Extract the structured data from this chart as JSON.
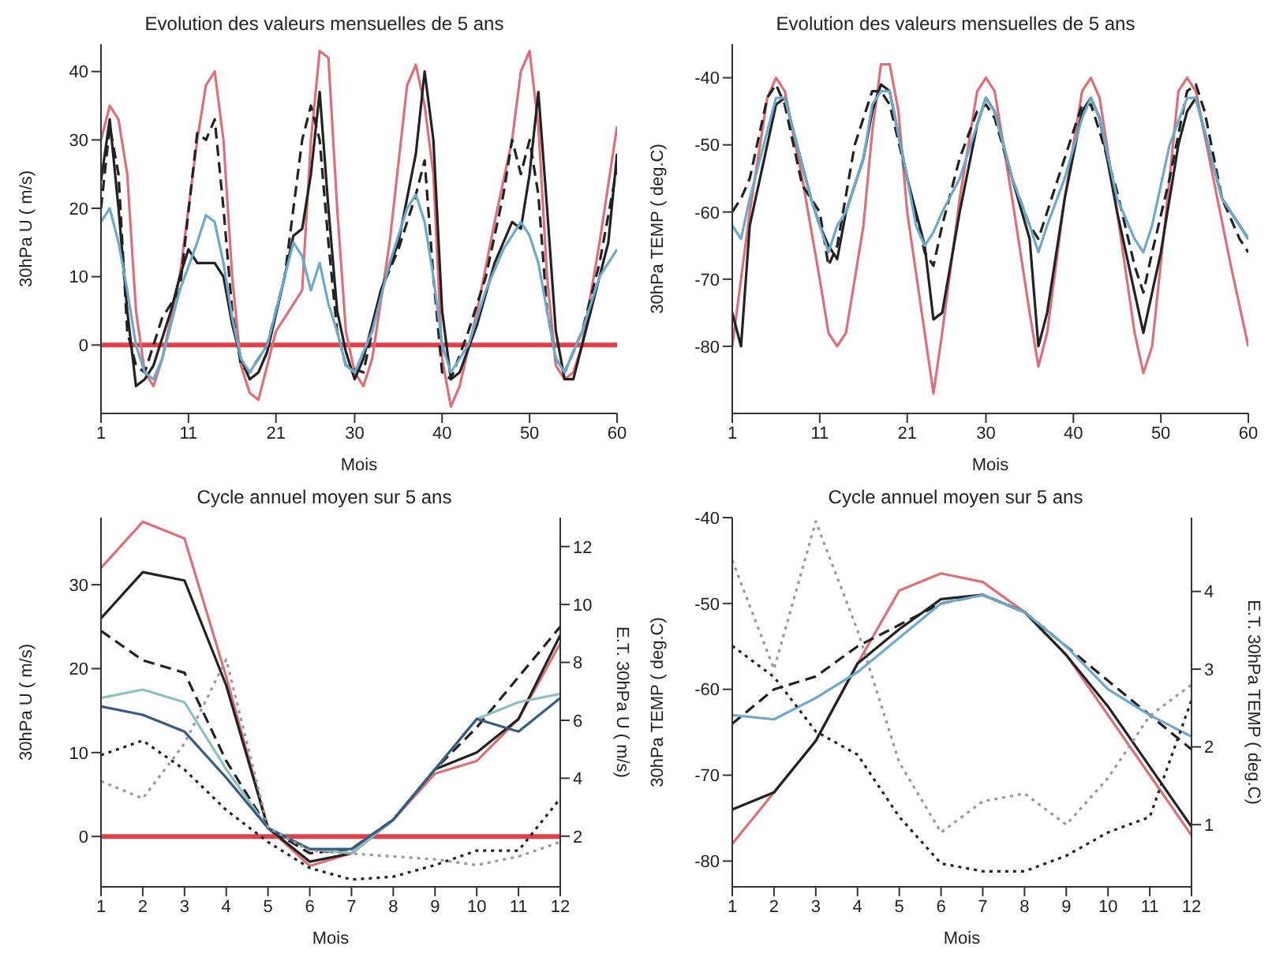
{
  "chart_data": [
    {
      "type": "line",
      "title": "Evolution des valeurs mensuelles de 5 ans",
      "xlabel": "Mois",
      "ylabel": "30hPa U ( m/s)",
      "xlim": [
        1,
        60
      ],
      "xticks": [
        1,
        11,
        21,
        30,
        40,
        50,
        60
      ],
      "ylim": [
        -10,
        44
      ],
      "yticks": [
        0,
        10,
        20,
        30,
        40
      ],
      "ref_lines": [
        {
          "axis": "y",
          "value": 0,
          "color": "#e0404a"
        }
      ],
      "series": [
        {
          "color": "#d9707a",
          "line_style": "solid",
          "x": [
            1,
            2,
            3,
            4,
            5,
            6,
            7,
            8,
            10,
            12,
            13,
            14,
            15,
            16,
            17,
            18,
            19,
            20,
            21,
            22,
            24,
            25,
            26,
            27,
            28,
            29,
            30,
            31,
            32,
            34,
            36,
            37,
            38,
            39,
            40,
            41,
            42,
            44,
            46,
            48,
            49,
            50,
            51,
            52,
            53,
            54,
            55,
            56,
            58,
            60
          ],
          "values": [
            30,
            35,
            33,
            25,
            5,
            -4,
            -6,
            -2,
            10,
            30,
            38,
            40,
            30,
            10,
            -3,
            -7,
            -8,
            -3,
            2,
            4,
            8,
            30,
            43,
            42,
            20,
            2,
            -4,
            -6,
            -2,
            15,
            38,
            41,
            35,
            25,
            -2,
            -9,
            -6,
            5,
            18,
            30,
            40,
            43,
            32,
            10,
            -3,
            -5,
            -4,
            0,
            15,
            32
          ]
        },
        {
          "color": "#222222",
          "line_style": "solid",
          "x": [
            1,
            2,
            3,
            4,
            5,
            6,
            7,
            9,
            10,
            11,
            12,
            14,
            15,
            16,
            17,
            18,
            19,
            20,
            22,
            23,
            24,
            25,
            26,
            27,
            28,
            29,
            30,
            31,
            33,
            35,
            37,
            38,
            39,
            40,
            41,
            42,
            44,
            46,
            48,
            49,
            50,
            51,
            52,
            53,
            54,
            55,
            57,
            59,
            60
          ],
          "values": [
            24,
            33,
            20,
            5,
            -6,
            -5,
            -3,
            5,
            10,
            14,
            12,
            12,
            10,
            3,
            -2,
            -5,
            -4,
            -1,
            10,
            16,
            17,
            25,
            37,
            20,
            5,
            -1,
            -5,
            -2,
            8,
            15,
            28,
            40,
            30,
            5,
            -5,
            -4,
            3,
            12,
            18,
            17,
            25,
            37,
            20,
            2,
            -5,
            -5,
            5,
            15,
            28
          ]
        },
        {
          "color": "#222222",
          "line_style": "dashed",
          "x": [
            1,
            2,
            3,
            4,
            5,
            6,
            8,
            10,
            12,
            13,
            14,
            15,
            16,
            17,
            18,
            20,
            22,
            24,
            25,
            26,
            27,
            28,
            29,
            31,
            33,
            35,
            37,
            38,
            39,
            40,
            41,
            43,
            45,
            47,
            48,
            49,
            50,
            51,
            52,
            53,
            54,
            56,
            58,
            60
          ],
          "values": [
            20,
            32,
            25,
            2,
            -3,
            -4,
            4,
            8,
            31,
            30,
            33,
            20,
            5,
            -3,
            -4,
            0,
            10,
            30,
            35,
            30,
            15,
            2,
            -3,
            -4,
            8,
            14,
            22,
            27,
            10,
            -4,
            -5,
            2,
            10,
            22,
            30,
            25,
            30,
            22,
            5,
            -2,
            -4,
            2,
            12,
            26
          ]
        },
        {
          "color": "#6fa8c8",
          "line_style": "solid",
          "x": [
            1,
            2,
            3,
            4,
            5,
            6,
            7,
            8,
            10,
            12,
            13,
            14,
            15,
            16,
            17,
            18,
            20,
            22,
            23,
            24,
            25,
            26,
            27,
            28,
            29,
            30,
            32,
            34,
            36,
            37,
            38,
            39,
            40,
            41,
            43,
            45,
            47,
            49,
            50,
            51,
            52,
            53,
            54,
            56,
            58,
            60
          ],
          "values": [
            18,
            20,
            15,
            8,
            0,
            -4,
            -5,
            -2,
            8,
            15,
            19,
            18,
            12,
            4,
            -2,
            -4,
            0,
            10,
            15,
            13,
            8,
            12,
            6,
            2,
            -3,
            -4,
            2,
            12,
            20,
            22,
            18,
            10,
            0,
            -4,
            0,
            8,
            14,
            18,
            16,
            12,
            5,
            -2,
            -4,
            2,
            10,
            14
          ]
        }
      ]
    },
    {
      "type": "line",
      "title": "Evolution des valeurs mensuelles de 5 ans",
      "xlabel": "Mois",
      "ylabel": "30hPa TEMP ( deg.C)",
      "xlim": [
        1,
        60
      ],
      "xticks": [
        1,
        11,
        21,
        30,
        40,
        50,
        60
      ],
      "ylim": [
        -90,
        -35
      ],
      "yticks": [
        -40,
        -50,
        -60,
        -70,
        -80
      ],
      "series": [
        {
          "color": "#d9707a",
          "line_style": "solid",
          "x": [
            1,
            3,
            5,
            6,
            7,
            9,
            11,
            12,
            13,
            14,
            16,
            17,
            18,
            19,
            20,
            21,
            23,
            24,
            25,
            27,
            29,
            30,
            31,
            33,
            35,
            36,
            37,
            39,
            41,
            42,
            43,
            45,
            47,
            48,
            49,
            51,
            52,
            53,
            54,
            56,
            58,
            60
          ],
          "values": [
            -80,
            -60,
            -43,
            -40,
            -42,
            -55,
            -70,
            -78,
            -80,
            -78,
            -62,
            -48,
            -38,
            -38,
            -45,
            -60,
            -78,
            -87,
            -78,
            -58,
            -42,
            -40,
            -42,
            -58,
            -75,
            -83,
            -78,
            -58,
            -42,
            -40,
            -43,
            -60,
            -78,
            -84,
            -80,
            -55,
            -42,
            -40,
            -42,
            -55,
            -68,
            -80
          ]
        },
        {
          "color": "#222222",
          "line_style": "solid",
          "x": [
            1,
            2,
            3,
            5,
            6,
            7,
            8,
            10,
            11,
            12,
            13,
            14,
            16,
            17,
            18,
            19,
            21,
            23,
            24,
            25,
            27,
            29,
            30,
            31,
            33,
            35,
            36,
            37,
            39,
            41,
            42,
            43,
            45,
            47,
            48,
            49,
            50,
            51,
            52,
            53,
            54,
            55,
            57,
            59,
            60
          ],
          "values": [
            -75,
            -80,
            -62,
            -50,
            -44,
            -43,
            -48,
            -58,
            -62,
            -65,
            -67,
            -60,
            -52,
            -45,
            -41,
            -42,
            -55,
            -65,
            -76,
            -75,
            -60,
            -47,
            -43,
            -45,
            -55,
            -64,
            -80,
            -75,
            -58,
            -45,
            -43,
            -46,
            -60,
            -72,
            -78,
            -72,
            -66,
            -58,
            -50,
            -45,
            -43,
            -48,
            -58,
            -62,
            -64
          ]
        },
        {
          "color": "#222222",
          "line_style": "dashed",
          "x": [
            1,
            2,
            3,
            5,
            6,
            7,
            9,
            11,
            12,
            13,
            15,
            17,
            18,
            19,
            21,
            23,
            24,
            25,
            27,
            29,
            30,
            31,
            33,
            35,
            36,
            37,
            39,
            41,
            42,
            43,
            45,
            47,
            48,
            49,
            51,
            53,
            54,
            55,
            57,
            59,
            60
          ],
          "values": [
            -60,
            -58,
            -55,
            -43,
            -41,
            -44,
            -56,
            -60,
            -68,
            -65,
            -50,
            -42,
            -42,
            -44,
            -55,
            -66,
            -68,
            -62,
            -52,
            -45,
            -44,
            -46,
            -55,
            -62,
            -64,
            -60,
            -52,
            -44,
            -44,
            -48,
            -57,
            -68,
            -72,
            -66,
            -55,
            -42,
            -41,
            -45,
            -58,
            -64,
            -66
          ]
        },
        {
          "color": "#6fa8c8",
          "line_style": "solid",
          "x": [
            1,
            2,
            3,
            5,
            6,
            7,
            8,
            10,
            11,
            12,
            13,
            14,
            16,
            17,
            18,
            19,
            21,
            22,
            23,
            24,
            25,
            27,
            29,
            30,
            31,
            33,
            35,
            36,
            37,
            39,
            41,
            42,
            43,
            45,
            47,
            48,
            49,
            51,
            53,
            54,
            55,
            57,
            59,
            60
          ],
          "values": [
            -62,
            -64,
            -58,
            -48,
            -43,
            -43,
            -48,
            -58,
            -62,
            -66,
            -62,
            -60,
            -52,
            -44,
            -42,
            -42,
            -55,
            -62,
            -65,
            -63,
            -60,
            -55,
            -47,
            -43,
            -45,
            -55,
            -62,
            -66,
            -62,
            -55,
            -46,
            -43,
            -46,
            -58,
            -64,
            -66,
            -62,
            -50,
            -43,
            -43,
            -48,
            -58,
            -62,
            -64
          ]
        }
      ]
    },
    {
      "type": "line",
      "title": "Cycle annuel moyen sur 5 ans",
      "xlabel": "Mois",
      "ylabel": "30hPa U ( m/s)",
      "y2label": "E.T. 30hPa U ( m/s)",
      "xlim": [
        1,
        12
      ],
      "xticks": [
        1,
        2,
        3,
        4,
        5,
        6,
        7,
        8,
        9,
        10,
        11,
        12
      ],
      "ylim": [
        -6,
        38
      ],
      "yticks": [
        0,
        10,
        20,
        30
      ],
      "y2lim": [
        0.25,
        13
      ],
      "y2ticks": [
        2,
        4,
        6,
        8,
        10,
        12
      ],
      "ref_lines": [
        {
          "axis": "y",
          "value": 0,
          "color": "#e0404a"
        }
      ],
      "series": [
        {
          "color": "#d9707a",
          "line_style": "solid",
          "x": [
            1,
            2,
            3,
            4,
            5,
            6,
            7,
            8,
            9,
            10,
            11,
            12
          ],
          "values": [
            32,
            37.5,
            35.5,
            19,
            1,
            -3.5,
            -2,
            2,
            7.5,
            9,
            14,
            23
          ]
        },
        {
          "color": "#222222",
          "line_style": "solid",
          "x": [
            1,
            2,
            3,
            4,
            5,
            6,
            7,
            8,
            9,
            10,
            11,
            12
          ],
          "values": [
            26,
            31.5,
            30.5,
            18,
            1,
            -3,
            -2,
            2,
            8,
            10,
            14,
            24
          ]
        },
        {
          "color": "#222222",
          "line_style": "dashed",
          "x": [
            1,
            2,
            3,
            4,
            5,
            6,
            7,
            8,
            9,
            10,
            11,
            12
          ],
          "values": [
            24.5,
            21,
            19.5,
            9,
            1,
            -2,
            -1.5,
            2,
            8,
            13,
            19,
            25
          ]
        },
        {
          "color": "#8fc0c0",
          "line_style": "solid",
          "x": [
            1,
            2,
            3,
            4,
            5,
            6,
            7,
            8,
            9,
            10,
            11,
            12
          ],
          "values": [
            16.5,
            17.5,
            16,
            8,
            1,
            -1.5,
            -2,
            2,
            8,
            14,
            16,
            17
          ]
        },
        {
          "color": "#3a5a80",
          "line_style": "solid",
          "x": [
            1,
            2,
            3,
            4,
            5,
            6,
            7,
            8,
            9,
            10,
            11,
            12
          ],
          "values": [
            15.5,
            14.5,
            12.5,
            7,
            1,
            -1.5,
            -1.5,
            2,
            8,
            14,
            12.5,
            16.5
          ]
        },
        {
          "color": "#222222",
          "line_style": "dotted",
          "axis": "y2",
          "x": [
            1,
            2,
            3,
            4,
            5,
            6,
            7,
            8,
            9,
            10,
            11,
            12
          ],
          "values": [
            4.8,
            5.3,
            4.3,
            2.9,
            1.8,
            0.9,
            0.5,
            0.6,
            1,
            1.5,
            1.5,
            3.3
          ]
        },
        {
          "color": "#999999",
          "line_style": "dotted",
          "axis": "y2",
          "x": [
            1,
            2,
            3,
            4,
            5,
            6,
            7,
            8,
            9,
            10,
            11,
            12
          ],
          "values": [
            3.9,
            3.3,
            5.2,
            8.1,
            2.3,
            1.5,
            1.4,
            1.3,
            1.2,
            1,
            1.3,
            1.8
          ]
        }
      ]
    },
    {
      "type": "line",
      "title": "Cycle annuel moyen sur 5 ans",
      "xlabel": "Mois",
      "ylabel": "30hPa TEMP ( deg.C)",
      "y2label": "E.T. 30hPa TEMP ( deg.C)",
      "xlim": [
        1,
        12
      ],
      "xticks": [
        1,
        2,
        3,
        4,
        5,
        6,
        7,
        8,
        9,
        10,
        11,
        12
      ],
      "ylim": [
        -83,
        -40
      ],
      "yticks": [
        -40,
        -50,
        -60,
        -70,
        -80
      ],
      "y2lim": [
        0.2,
        4.95
      ],
      "y2ticks": [
        1,
        2,
        3,
        4
      ],
      "series": [
        {
          "color": "#d9707a",
          "line_style": "solid",
          "x": [
            1,
            2,
            3,
            4,
            5,
            6,
            7,
            8,
            9,
            10,
            11,
            12
          ],
          "values": [
            -78,
            -72,
            -66,
            -57,
            -48.5,
            -46.5,
            -47.5,
            -51,
            -56,
            -63,
            -70,
            -77
          ]
        },
        {
          "color": "#222222",
          "line_style": "solid",
          "x": [
            1,
            2,
            3,
            4,
            5,
            6,
            7,
            8,
            9,
            10,
            11,
            12
          ],
          "values": [
            -74,
            -72,
            -66,
            -57,
            -53,
            -49.5,
            -49,
            -51,
            -56,
            -62,
            -69,
            -76
          ]
        },
        {
          "color": "#222222",
          "line_style": "dashed",
          "x": [
            1,
            2,
            3,
            4,
            5,
            6,
            7,
            8,
            9,
            10,
            11,
            12
          ],
          "values": [
            -64,
            -60,
            -58.5,
            -55,
            -52.5,
            -50,
            -49,
            -51,
            -55,
            -59,
            -63,
            -67
          ]
        },
        {
          "color": "#6fa8c8",
          "line_style": "solid",
          "x": [
            1,
            2,
            3,
            4,
            5,
            6,
            7,
            8,
            9,
            10,
            11,
            12
          ],
          "values": [
            -63,
            -63.5,
            -61,
            -58,
            -54,
            -50,
            -49,
            -51,
            -55,
            -60,
            -63,
            -65.5
          ]
        },
        {
          "color": "#222222",
          "line_style": "dotted",
          "axis": "y2",
          "x": [
            1,
            2,
            3,
            4,
            5,
            6,
            7,
            8,
            9,
            10,
            11,
            12
          ],
          "values": [
            3.3,
            2.9,
            2.2,
            1.9,
            1.1,
            0.5,
            0.4,
            0.4,
            0.6,
            0.9,
            1.1,
            2.6
          ]
        },
        {
          "color": "#999999",
          "line_style": "dotted",
          "axis": "y2",
          "x": [
            1,
            2,
            3,
            4,
            5,
            6,
            7,
            8,
            9,
            10,
            11,
            12
          ],
          "values": [
            4.4,
            3,
            4.9,
            3.5,
            1.8,
            0.9,
            1.3,
            1.4,
            1,
            1.6,
            2.4,
            2.8
          ]
        }
      ]
    }
  ]
}
